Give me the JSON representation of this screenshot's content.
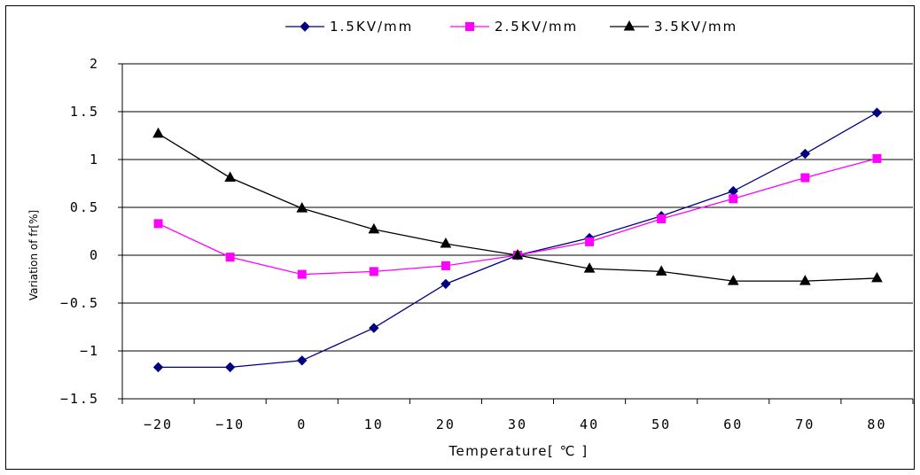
{
  "chart_data": {
    "type": "line",
    "title": "",
    "xlabel": "Temperature[ ℃ ]",
    "ylabel": "Variation of fr[%]",
    "x": [
      -20,
      -10,
      0,
      10,
      20,
      30,
      40,
      50,
      60,
      70,
      80
    ],
    "x_tick_labels": [
      "-20",
      "-10",
      "0",
      "10",
      "20",
      "30",
      "40",
      "50",
      "60",
      "70",
      "80"
    ],
    "y_tick_labels": [
      "2",
      "1.5",
      "1",
      "0.5",
      "0",
      "-0.5",
      "-1",
      "-1.5"
    ],
    "ylim": [
      -1.5,
      2
    ],
    "grid": "horizontal",
    "legend_position": "top",
    "series": [
      {
        "name": "1.5KV/mm",
        "color": "#000080",
        "marker": "diamond",
        "values": [
          -1.17,
          -1.17,
          -1.1,
          -0.76,
          -0.3,
          0.0,
          0.18,
          0.41,
          0.67,
          1.06,
          1.49
        ]
      },
      {
        "name": "2.5KV/mm",
        "color": "#ff00ff",
        "marker": "square",
        "values": [
          0.33,
          -0.02,
          -0.2,
          -0.17,
          -0.11,
          0.0,
          0.14,
          0.38,
          0.59,
          0.81,
          1.01
        ]
      },
      {
        "name": "3.5KV/mm",
        "color": "#000000",
        "marker": "triangle",
        "values": [
          1.27,
          0.81,
          0.49,
          0.27,
          0.12,
          0.0,
          -0.14,
          -0.17,
          -0.27,
          -0.27,
          -0.24
        ]
      }
    ]
  }
}
